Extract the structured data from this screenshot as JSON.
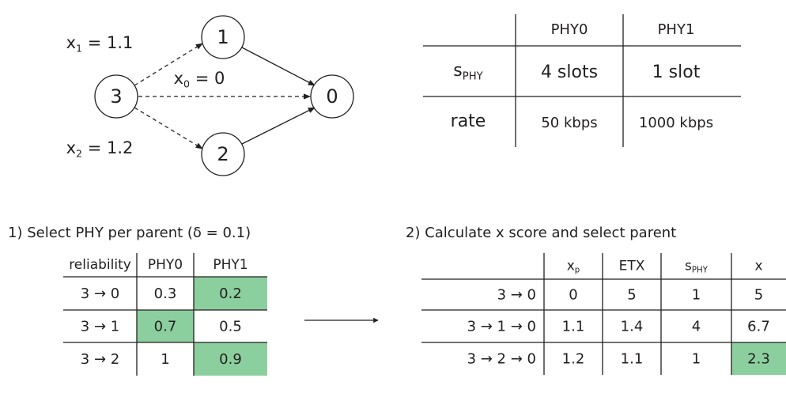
{
  "graph": {
    "nodes": [
      {
        "label": "3"
      },
      {
        "label": "1"
      },
      {
        "label": "2"
      },
      {
        "label": "0"
      }
    ],
    "edges": [
      {
        "var": "x",
        "sub": "1",
        "rest": " = 1.1"
      },
      {
        "var": "x",
        "sub": "0",
        "rest": " = 0"
      },
      {
        "var": "x",
        "sub": "2",
        "rest": " = 1.2"
      }
    ]
  },
  "phy_table": {
    "header": [
      "PHY0",
      "PHY1"
    ],
    "rows": [
      {
        "label": {
          "var": "s",
          "sub": "PHY"
        },
        "cells": [
          "4 slots",
          "1 slot"
        ]
      },
      {
        "label": "rate",
        "cells": [
          "50 kbps",
          "1000 kbps"
        ]
      }
    ]
  },
  "step1": {
    "caption": "1) Select PHY per parent (δ = 0.1)",
    "header": [
      "reliability",
      "PHY0",
      "PHY1"
    ],
    "rows": [
      [
        "3 → 0",
        "0.3",
        "0.2"
      ],
      [
        "3 → 1",
        "0.7",
        "0.5"
      ],
      [
        "3 → 2",
        "1",
        "0.9"
      ]
    ]
  },
  "step2": {
    "caption": "2) Calculate x score and select parent",
    "header": [
      {
        "var": "x",
        "sub": "p"
      },
      "ETX",
      {
        "var": "s",
        "sub": "PHY"
      },
      "x"
    ],
    "rows": [
      [
        "3 → 0",
        "0",
        "5",
        "1",
        "5"
      ],
      [
        "3 → 1 → 0",
        "1.1",
        "1.4",
        "4",
        "6.7"
      ],
      [
        "3 → 2 → 0",
        "1.2",
        "1.1",
        "1",
        "2.3"
      ]
    ]
  }
}
